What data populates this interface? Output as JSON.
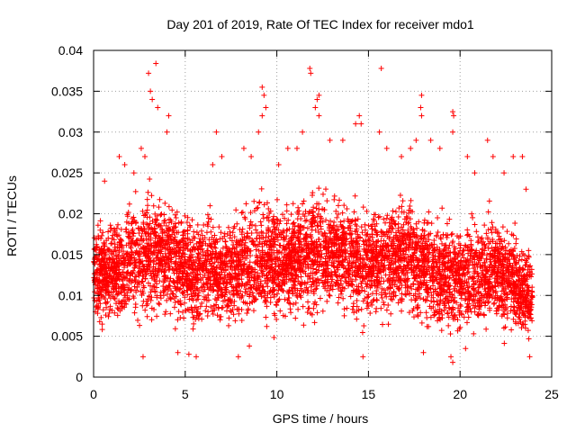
{
  "chart_data": {
    "type": "scatter",
    "title": "Day 201 of 2019, Rate Of TEC Index for receiver mdo1",
    "xlabel": "GPS time / hours",
    "ylabel": "ROTI / TECUs",
    "xlim": [
      0,
      25
    ],
    "ylim": [
      0,
      0.04
    ],
    "x_ticks": [
      {
        "value": 0,
        "label": "0"
      },
      {
        "value": 5,
        "label": "5"
      },
      {
        "value": 10,
        "label": "10"
      },
      {
        "value": 15,
        "label": "15"
      },
      {
        "value": 20,
        "label": "20"
      },
      {
        "value": 25,
        "label": "25"
      }
    ],
    "y_ticks": [
      {
        "value": 0,
        "label": "0"
      },
      {
        "value": 0.005,
        "label": "0.005"
      },
      {
        "value": 0.01,
        "label": "0.01"
      },
      {
        "value": 0.015,
        "label": "0.015"
      },
      {
        "value": 0.02,
        "label": "0.02"
      },
      {
        "value": 0.025,
        "label": "0.025"
      },
      {
        "value": 0.03,
        "label": "0.03"
      },
      {
        "value": 0.035,
        "label": "0.035"
      },
      {
        "value": 0.04,
        "label": "0.04"
      }
    ],
    "grid": true,
    "marker": "+",
    "color": "#ff0000",
    "series": [
      {
        "name": "ROTI",
        "points": [
          [
            3.0,
            0.0372
          ],
          [
            3.4,
            0.0384
          ],
          [
            3.1,
            0.035
          ],
          [
            3.2,
            0.034
          ],
          [
            3.5,
            0.033
          ],
          [
            4.1,
            0.032
          ],
          [
            4.0,
            0.03
          ],
          [
            2.6,
            0.028
          ],
          [
            2.8,
            0.027
          ],
          [
            1.4,
            0.027
          ],
          [
            1.7,
            0.026
          ],
          [
            2.2,
            0.025
          ],
          [
            0.6,
            0.024
          ],
          [
            6.7,
            0.03
          ],
          [
            7.0,
            0.027
          ],
          [
            6.5,
            0.026
          ],
          [
            8.2,
            0.028
          ],
          [
            8.6,
            0.027
          ],
          [
            9.2,
            0.0355
          ],
          [
            9.3,
            0.0345
          ],
          [
            9.4,
            0.033
          ],
          [
            9.2,
            0.032
          ],
          [
            9.0,
            0.03
          ],
          [
            10.1,
            0.026
          ],
          [
            10.6,
            0.028
          ],
          [
            11.1,
            0.028
          ],
          [
            11.8,
            0.0378
          ],
          [
            11.85,
            0.0372
          ],
          [
            12.3,
            0.0345
          ],
          [
            12.2,
            0.034
          ],
          [
            12.3,
            0.032
          ],
          [
            12.1,
            0.033
          ],
          [
            11.4,
            0.03
          ],
          [
            12.9,
            0.029
          ],
          [
            13.6,
            0.029
          ],
          [
            14.3,
            0.031
          ],
          [
            14.5,
            0.032
          ],
          [
            14.6,
            0.031
          ],
          [
            15.7,
            0.0378
          ],
          [
            15.6,
            0.03
          ],
          [
            16.0,
            0.028
          ],
          [
            16.8,
            0.027
          ],
          [
            17.3,
            0.028
          ],
          [
            17.9,
            0.0345
          ],
          [
            17.85,
            0.033
          ],
          [
            17.9,
            0.032
          ],
          [
            17.6,
            0.029
          ],
          [
            18.4,
            0.029
          ],
          [
            18.9,
            0.028
          ],
          [
            19.6,
            0.0325
          ],
          [
            19.65,
            0.032
          ],
          [
            19.6,
            0.03
          ],
          [
            20.4,
            0.027
          ],
          [
            20.8,
            0.025
          ],
          [
            21.5,
            0.029
          ],
          [
            21.8,
            0.027
          ],
          [
            22.4,
            0.025
          ],
          [
            22.9,
            0.027
          ],
          [
            23.4,
            0.027
          ],
          [
            23.6,
            0.023
          ],
          [
            2.7,
            0.0025
          ],
          [
            4.6,
            0.003
          ],
          [
            5.2,
            0.0028
          ],
          [
            5.6,
            0.0025
          ],
          [
            7.9,
            0.0025
          ],
          [
            8.5,
            0.0038
          ],
          [
            14.7,
            0.0025
          ],
          [
            18.0,
            0.003
          ],
          [
            19.6,
            0.0018
          ],
          [
            19.5,
            0.0025
          ],
          [
            20.3,
            0.0035
          ],
          [
            23.8,
            0.0025
          ],
          [
            0.1,
            0.008
          ],
          [
            0.3,
            0.0125
          ],
          [
            1.0,
            0.015
          ],
          [
            2.0,
            0.012
          ],
          [
            4.5,
            0.014
          ],
          [
            6.0,
            0.013
          ],
          [
            7.5,
            0.012
          ],
          [
            9.6,
            0.015
          ],
          [
            11.0,
            0.014
          ],
          [
            13.0,
            0.016
          ],
          [
            14.0,
            0.013
          ],
          [
            16.5,
            0.015
          ],
          [
            18.5,
            0.012
          ],
          [
            21.0,
            0.014
          ],
          [
            22.5,
            0.013
          ],
          [
            23.7,
            0.01
          ]
        ]
      }
    ]
  }
}
